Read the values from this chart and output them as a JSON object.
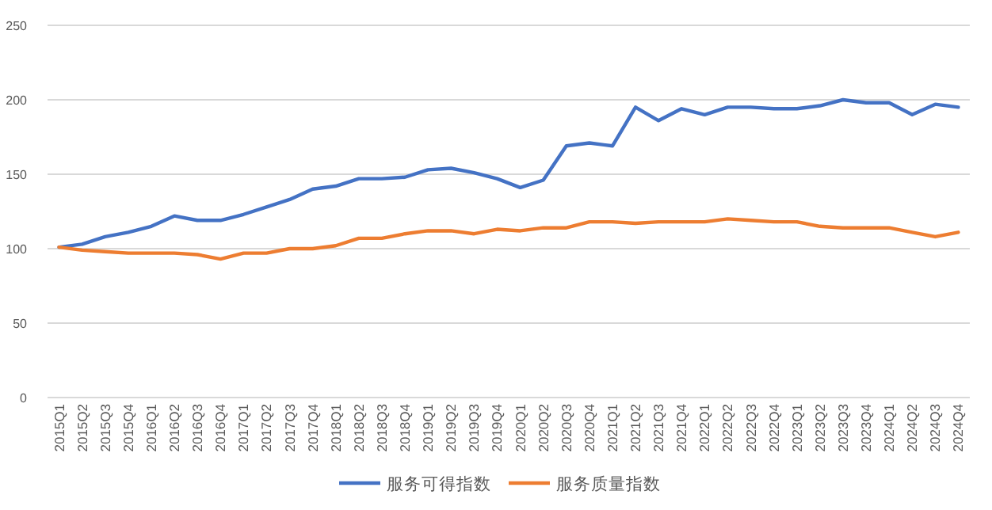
{
  "chart_data": {
    "type": "line",
    "categories": [
      "2015Q1",
      "2015Q2",
      "2015Q3",
      "2015Q4",
      "2016Q1",
      "2016Q2",
      "2016Q3",
      "2016Q4",
      "2017Q1",
      "2017Q2",
      "2017Q3",
      "2017Q4",
      "2018Q1",
      "2018Q2",
      "2018Q3",
      "2018Q4",
      "2019Q1",
      "2019Q2",
      "2019Q3",
      "2019Q4",
      "2020Q1",
      "2020Q2",
      "2020Q3",
      "2020Q4",
      "2021Q1",
      "2021Q2",
      "2021Q3",
      "2021Q4",
      "2022Q1",
      "2022Q2",
      "2022Q3",
      "2022Q4",
      "2023Q1",
      "2023Q2",
      "2023Q3",
      "2023Q4",
      "2024Q1",
      "2024Q2",
      "2024Q3",
      "2024Q4"
    ],
    "series": [
      {
        "name": "服务可得指数",
        "color": "#4472c4",
        "values": [
          101,
          103,
          108,
          111,
          115,
          122,
          119,
          119,
          123,
          128,
          133,
          140,
          142,
          147,
          147,
          148,
          153,
          154,
          151,
          147,
          141,
          146,
          169,
          171,
          169,
          195,
          186,
          194,
          190,
          195,
          195,
          194,
          194,
          196,
          200,
          198,
          198,
          190,
          197,
          195
        ]
      },
      {
        "name": "服务质量指数",
        "color": "#ed7d31",
        "values": [
          101,
          99,
          98,
          97,
          97,
          97,
          96,
          93,
          97,
          97,
          100,
          100,
          102,
          107,
          107,
          110,
          112,
          112,
          110,
          113,
          112,
          114,
          114,
          118,
          118,
          117,
          118,
          118,
          118,
          120,
          119,
          118,
          118,
          115,
          114,
          114,
          114,
          111,
          108,
          111
        ]
      }
    ],
    "ylim": [
      0,
      250
    ],
    "yticks": [
      0,
      50,
      100,
      150,
      200,
      250
    ],
    "grid": "y",
    "legend": "bottom"
  }
}
